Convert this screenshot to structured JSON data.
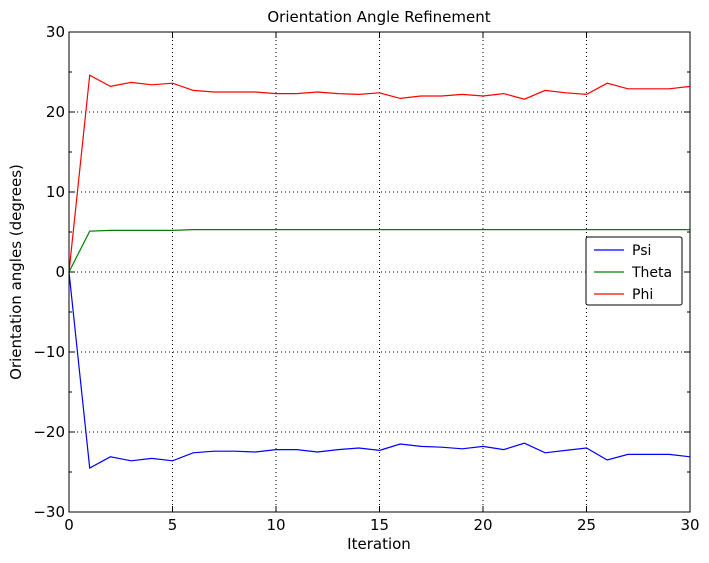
{
  "chart_data": {
    "type": "line",
    "title": "Orientation Angle Refinement",
    "xlabel": "Iteration",
    "ylabel": "Orientation angles (degrees)",
    "xlim": [
      0,
      30
    ],
    "ylim": [
      -30,
      30
    ],
    "xticks": [
      0,
      5,
      10,
      15,
      20,
      25,
      30
    ],
    "xtick_labels": [
      "0",
      "5",
      "10",
      "15",
      "20",
      "25",
      "30"
    ],
    "yticks": [
      -30,
      -20,
      -10,
      0,
      10,
      20,
      30
    ],
    "ytick_labels": [
      "−30",
      "−20",
      "−10",
      "0",
      "10",
      "20",
      "30"
    ],
    "grid": true,
    "legend_position": "center-right",
    "x": [
      0,
      1,
      2,
      3,
      4,
      5,
      6,
      7,
      8,
      9,
      10,
      11,
      12,
      13,
      14,
      15,
      16,
      17,
      18,
      19,
      20,
      21,
      22,
      23,
      24,
      25,
      26,
      27,
      28,
      29,
      30
    ],
    "series": [
      {
        "name": "Psi",
        "color": "#0000ff",
        "values": [
          0,
          -24.5,
          -23.1,
          -23.6,
          -23.3,
          -23.6,
          -22.6,
          -22.4,
          -22.4,
          -22.5,
          -22.2,
          -22.2,
          -22.5,
          -22.2,
          -22.0,
          -22.3,
          -21.5,
          -21.8,
          -21.9,
          -22.1,
          -21.8,
          -22.2,
          -21.4,
          -22.6,
          -22.3,
          -22.0,
          -23.5,
          -22.8,
          -22.8,
          -22.8,
          -23.1
        ]
      },
      {
        "name": "Theta",
        "color": "#008000",
        "values": [
          0,
          5.1,
          5.2,
          5.2,
          5.2,
          5.2,
          5.3,
          5.3,
          5.3,
          5.3,
          5.3,
          5.3,
          5.3,
          5.3,
          5.3,
          5.3,
          5.3,
          5.3,
          5.3,
          5.3,
          5.3,
          5.3,
          5.3,
          5.3,
          5.3,
          5.3,
          5.3,
          5.3,
          5.3,
          5.3,
          5.3
        ]
      },
      {
        "name": "Phi",
        "color": "#ff0000",
        "values": [
          0,
          24.6,
          23.2,
          23.7,
          23.4,
          23.6,
          22.7,
          22.5,
          22.5,
          22.5,
          22.3,
          22.3,
          22.5,
          22.3,
          22.2,
          22.4,
          21.7,
          22.0,
          22.0,
          22.2,
          22.0,
          22.3,
          21.6,
          22.7,
          22.4,
          22.2,
          23.6,
          22.9,
          22.9,
          22.9,
          23.2
        ]
      }
    ]
  }
}
